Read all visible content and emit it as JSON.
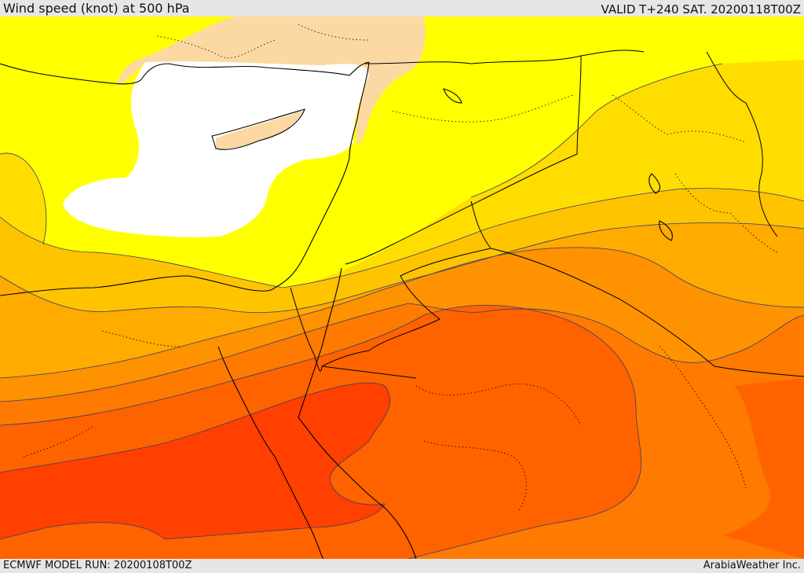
{
  "header": {
    "title": "Wind speed (knot) at 500 hPa",
    "valid": "VALID T+240 SAT. 20200118T00Z"
  },
  "footer": {
    "model_run": "ECMWF MODEL RUN: 20200108T00Z",
    "credit": "ArabiaWeather Inc."
  },
  "colors": {
    "calm_white": "#ffffff",
    "light_peach": "#fcd9a2",
    "yellow": "#ffff00",
    "gold": "#ffdd00",
    "amber": "#ffc400",
    "light_orange": "#ffab00",
    "orange": "#ff9200",
    "dark_orange": "#ff7a00",
    "red_orange": "#ff6300",
    "deep_red_orange": "#ff4000",
    "coastline": "#000000",
    "contour": "#3a3a6a"
  }
}
